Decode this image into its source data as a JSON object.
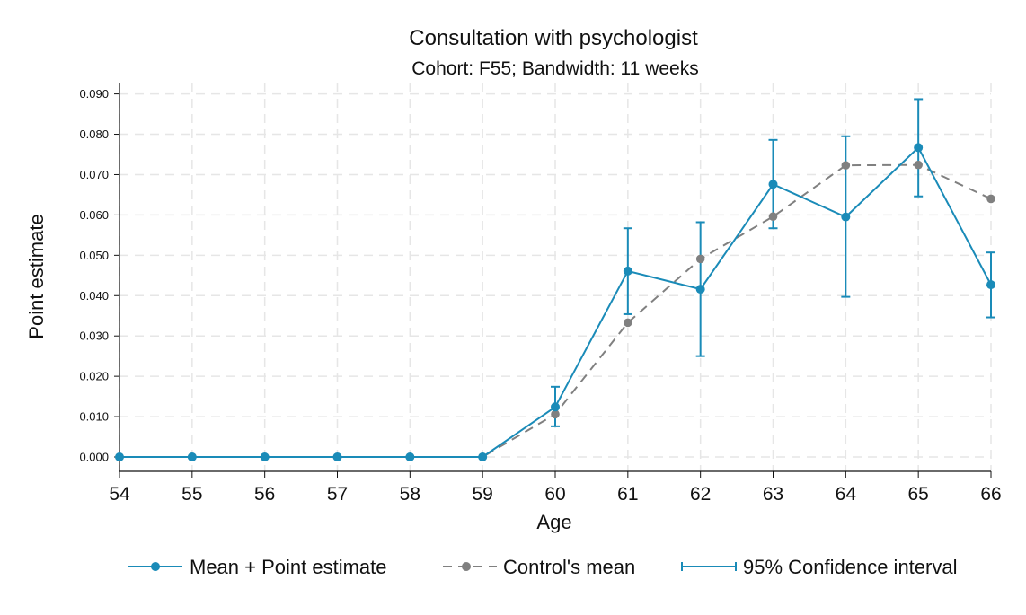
{
  "chart_data": {
    "type": "line",
    "title": "Consultation with psychologist",
    "subtitle": "Cohort: F55; Bandwidth: 11 weeks",
    "xlabel": "Age",
    "ylabel": "Point estimate",
    "x": [
      54,
      55,
      56,
      57,
      58,
      59,
      60,
      61,
      62,
      63,
      64,
      65,
      66
    ],
    "xlim": [
      54,
      66
    ],
    "ylim": [
      0,
      0.09
    ],
    "y_ticks": [
      "0.000",
      "0.010",
      "0.020",
      "0.030",
      "0.040",
      "0.050",
      "0.060",
      "0.070",
      "0.080",
      "0.090"
    ],
    "y_tick_values": [
      0,
      0.01,
      0.02,
      0.03,
      0.04,
      0.05,
      0.06,
      0.07,
      0.08,
      0.09
    ],
    "grid": true,
    "legend_position": "bottom",
    "series": [
      {
        "name": "Mean + Point estimate",
        "color": "#1a8bb8",
        "style": "solid-marker",
        "values": [
          0,
          0,
          0,
          0,
          0,
          0,
          0.0124,
          0.0461,
          0.0416,
          0.0676,
          0.0595,
          0.0767,
          0.0427
        ]
      },
      {
        "name": "Control's mean",
        "color": "#808080",
        "style": "dashed-marker",
        "values": [
          0,
          0,
          0,
          0,
          0,
          0,
          0.0106,
          0.0333,
          0.0491,
          0.0596,
          0.0723,
          0.0724,
          0.064
        ]
      }
    ],
    "confidence_interval": {
      "name": "95% Confidence interval",
      "color": "#1a8bb8",
      "lower": [
        null,
        null,
        null,
        null,
        null,
        null,
        0.0076,
        0.0354,
        0.025,
        0.0567,
        0.0397,
        0.0646,
        0.0346
      ],
      "upper": [
        null,
        null,
        null,
        null,
        null,
        null,
        0.0174,
        0.0567,
        0.0582,
        0.0786,
        0.0795,
        0.0887,
        0.0507
      ]
    }
  }
}
